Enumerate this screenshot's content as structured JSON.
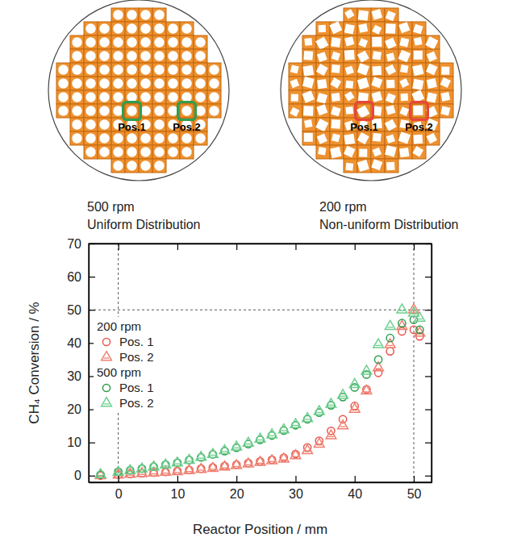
{
  "diagrams": [
    {
      "caption_top": "500 rpm",
      "caption_bottom": "Uniform Distribution",
      "positions": [
        "Pos.1",
        "Pos.2"
      ],
      "color": "#2e9e4e",
      "pattern": "uniform"
    },
    {
      "caption_top": "200 rpm",
      "caption_bottom": "Non-uniform Distribution",
      "positions": [
        "Pos.1",
        "Pos.2"
      ],
      "color": "#e8453c",
      "pattern": "non-uniform"
    }
  ],
  "chart_data": {
    "type": "scatter",
    "x_label": "Reactor Position / mm",
    "y_label": "CH₄ Conversion / %",
    "xlim": [
      -5,
      53
    ],
    "ylim": [
      -2,
      70
    ],
    "xticks": [
      0,
      10,
      20,
      30,
      40,
      50
    ],
    "yticks": [
      0,
      10,
      20,
      30,
      40,
      50,
      60,
      70
    ],
    "vlines": [
      0,
      50
    ],
    "hlines": [
      50
    ],
    "grid": false,
    "legend": "upper-left",
    "x": [
      -3,
      0,
      2,
      4,
      6,
      8,
      10,
      12,
      14,
      16,
      18,
      20,
      22,
      24,
      26,
      28,
      30,
      32,
      34,
      36,
      38,
      40,
      42,
      44,
      46,
      48,
      50,
      51
    ],
    "series": [
      {
        "name": "Pos. 1",
        "group": "200 rpm",
        "color": "#e8574f",
        "marker": "circle",
        "values": [
          0.0,
          0.3,
          0.5,
          0.7,
          0.9,
          1.1,
          1.4,
          1.7,
          2.1,
          2.5,
          2.9,
          3.3,
          3.8,
          4.3,
          4.8,
          5.4,
          6.5,
          8.5,
          10.5,
          13.5,
          17.0,
          21.0,
          26.0,
          31.0,
          37.5,
          43.5,
          44.0,
          42.0
        ]
      },
      {
        "name": "Pos. 2",
        "group": "200 rpm",
        "color": "#f08070",
        "marker": "triangle",
        "values": [
          0.0,
          0.2,
          0.4,
          0.6,
          0.8,
          1.0,
          1.2,
          1.5,
          1.9,
          2.2,
          2.6,
          3.0,
          3.5,
          4.0,
          4.5,
          5.0,
          6.0,
          7.5,
          9.5,
          12.0,
          15.0,
          20.0,
          25.5,
          32.5,
          39.5,
          45.0,
          50.0,
          43.0
        ]
      },
      {
        "name": "Pos. 1",
        "group": "500 rpm",
        "color": "#2e9e4e",
        "marker": "circle",
        "values": [
          0.3,
          1.2,
          1.6,
          2.1,
          2.7,
          3.3,
          3.9,
          4.7,
          5.5,
          6.4,
          7.4,
          8.4,
          9.5,
          10.8,
          12.1,
          13.6,
          15.2,
          17.0,
          19.0,
          21.2,
          23.7,
          26.6,
          30.5,
          35.0,
          41.5,
          46.0,
          47.0,
          44.0
        ]
      },
      {
        "name": "Pos. 2",
        "group": "500 rpm",
        "color": "#6dcf8f",
        "marker": "triangle",
        "values": [
          0.3,
          1.0,
          1.5,
          2.0,
          2.6,
          3.2,
          3.8,
          4.6,
          5.5,
          6.4,
          7.5,
          8.6,
          9.8,
          11.0,
          12.3,
          13.8,
          15.4,
          17.2,
          19.3,
          21.5,
          24.2,
          27.5,
          31.5,
          39.5,
          45.0,
          50.0,
          49.0,
          47.5
        ]
      }
    ]
  }
}
